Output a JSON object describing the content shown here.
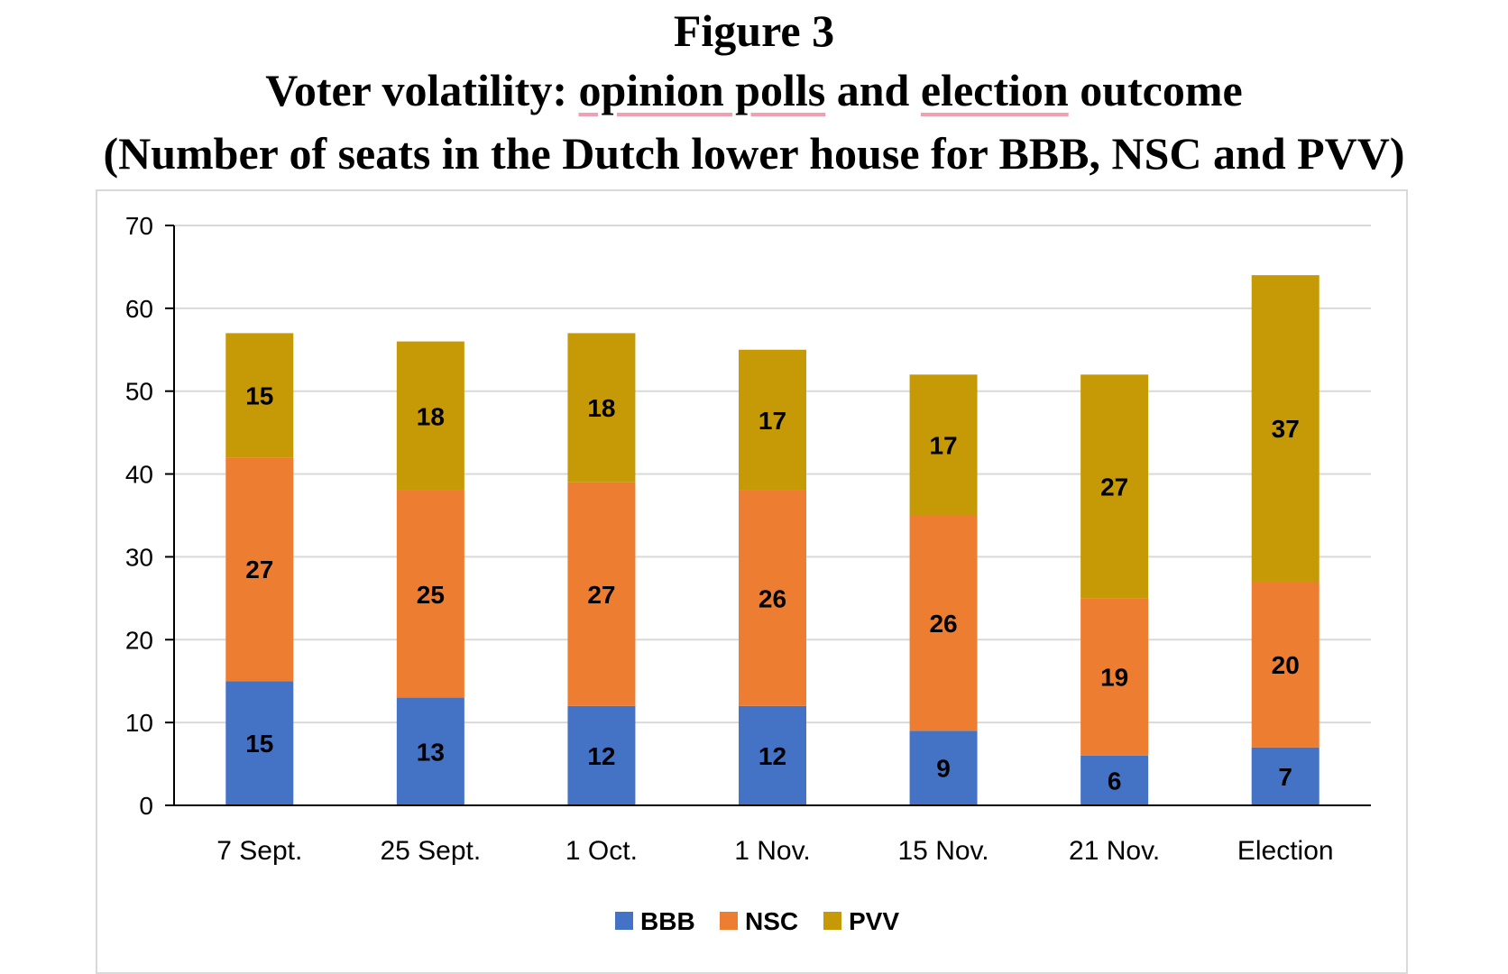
{
  "figure": {
    "label": "Figure 3",
    "title_parts": [
      "Voter volatility: ",
      "opinion polls",
      " and ",
      "election",
      " outcome"
    ],
    "subtitle": "(Number of seats in the Dutch lower house for BBB, NSC and PVV)"
  },
  "chart_data": {
    "type": "bar",
    "stacked": true,
    "categories": [
      "7 Sept.",
      "25 Sept.",
      "1 Oct.",
      "1 Nov.",
      "15 Nov.",
      "21 Nov.",
      "Election"
    ],
    "series": [
      {
        "name": "BBB",
        "color": "#4472C4",
        "values": [
          15,
          13,
          12,
          12,
          9,
          6,
          7
        ]
      },
      {
        "name": "NSC",
        "color": "#ED7D31",
        "values": [
          27,
          25,
          27,
          26,
          26,
          19,
          20
        ]
      },
      {
        "name": "PVV",
        "color": "#C59A06",
        "values": [
          15,
          18,
          18,
          17,
          17,
          27,
          37
        ]
      }
    ],
    "yticks": [
      0,
      10,
      20,
      30,
      40,
      50,
      60,
      70
    ],
    "ylim": [
      0,
      70
    ],
    "xlabel": "",
    "ylabel": "",
    "grid": true,
    "legend_position": "bottom",
    "data_labels": true
  }
}
